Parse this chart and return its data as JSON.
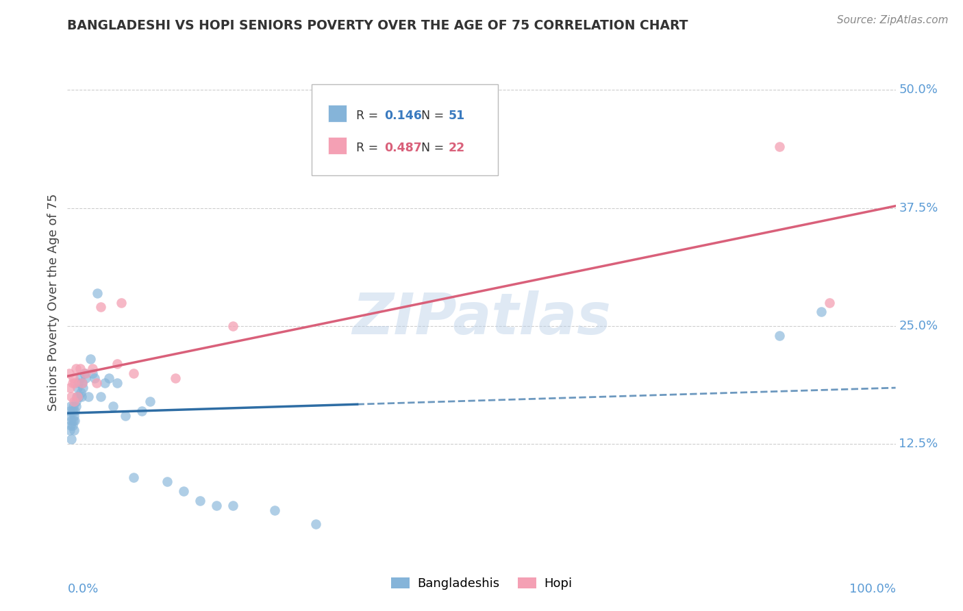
{
  "title": "BANGLADESHI VS HOPI SENIORS POVERTY OVER THE AGE OF 75 CORRELATION CHART",
  "source": "Source: ZipAtlas.com",
  "ylabel": "Seniors Poverty Over the Age of 75",
  "ytick_values": [
    0.125,
    0.25,
    0.375,
    0.5
  ],
  "xlim": [
    0.0,
    1.0
  ],
  "ylim": [
    0.0,
    0.55
  ],
  "color_bangladeshi": "#85b4d9",
  "color_hopi": "#f4a0b4",
  "color_bangladeshi_line": "#2e6da4",
  "color_hopi_line": "#d9607a",
  "bangladeshi_x": [
    0.002,
    0.003,
    0.003,
    0.004,
    0.004,
    0.005,
    0.005,
    0.006,
    0.006,
    0.007,
    0.007,
    0.008,
    0.008,
    0.009,
    0.009,
    0.01,
    0.01,
    0.011,
    0.012,
    0.013,
    0.014,
    0.015,
    0.016,
    0.017,
    0.018,
    0.019,
    0.02,
    0.022,
    0.025,
    0.028,
    0.03,
    0.033,
    0.036,
    0.04,
    0.045,
    0.05,
    0.055,
    0.06,
    0.07,
    0.08,
    0.09,
    0.1,
    0.12,
    0.14,
    0.16,
    0.18,
    0.2,
    0.25,
    0.3,
    0.86,
    0.91
  ],
  "bangladeshi_y": [
    0.155,
    0.14,
    0.16,
    0.145,
    0.165,
    0.13,
    0.15,
    0.145,
    0.16,
    0.15,
    0.165,
    0.14,
    0.155,
    0.15,
    0.16,
    0.165,
    0.17,
    0.175,
    0.185,
    0.19,
    0.175,
    0.195,
    0.18,
    0.175,
    0.19,
    0.185,
    0.2,
    0.195,
    0.175,
    0.215,
    0.2,
    0.195,
    0.285,
    0.175,
    0.19,
    0.195,
    0.165,
    0.19,
    0.155,
    0.09,
    0.16,
    0.17,
    0.085,
    0.075,
    0.065,
    0.06,
    0.06,
    0.055,
    0.04,
    0.24,
    0.265
  ],
  "hopi_x": [
    0.002,
    0.003,
    0.005,
    0.006,
    0.007,
    0.008,
    0.009,
    0.01,
    0.012,
    0.015,
    0.018,
    0.022,
    0.03,
    0.035,
    0.04,
    0.06,
    0.065,
    0.08,
    0.13,
    0.2,
    0.86,
    0.92
  ],
  "hopi_y": [
    0.2,
    0.185,
    0.175,
    0.19,
    0.195,
    0.17,
    0.19,
    0.205,
    0.175,
    0.205,
    0.19,
    0.2,
    0.205,
    0.19,
    0.27,
    0.21,
    0.275,
    0.2,
    0.195,
    0.25,
    0.44,
    0.275
  ],
  "watermark": "ZIPatlas",
  "background_color": "#ffffff",
  "grid_color": "#c8c8c8"
}
